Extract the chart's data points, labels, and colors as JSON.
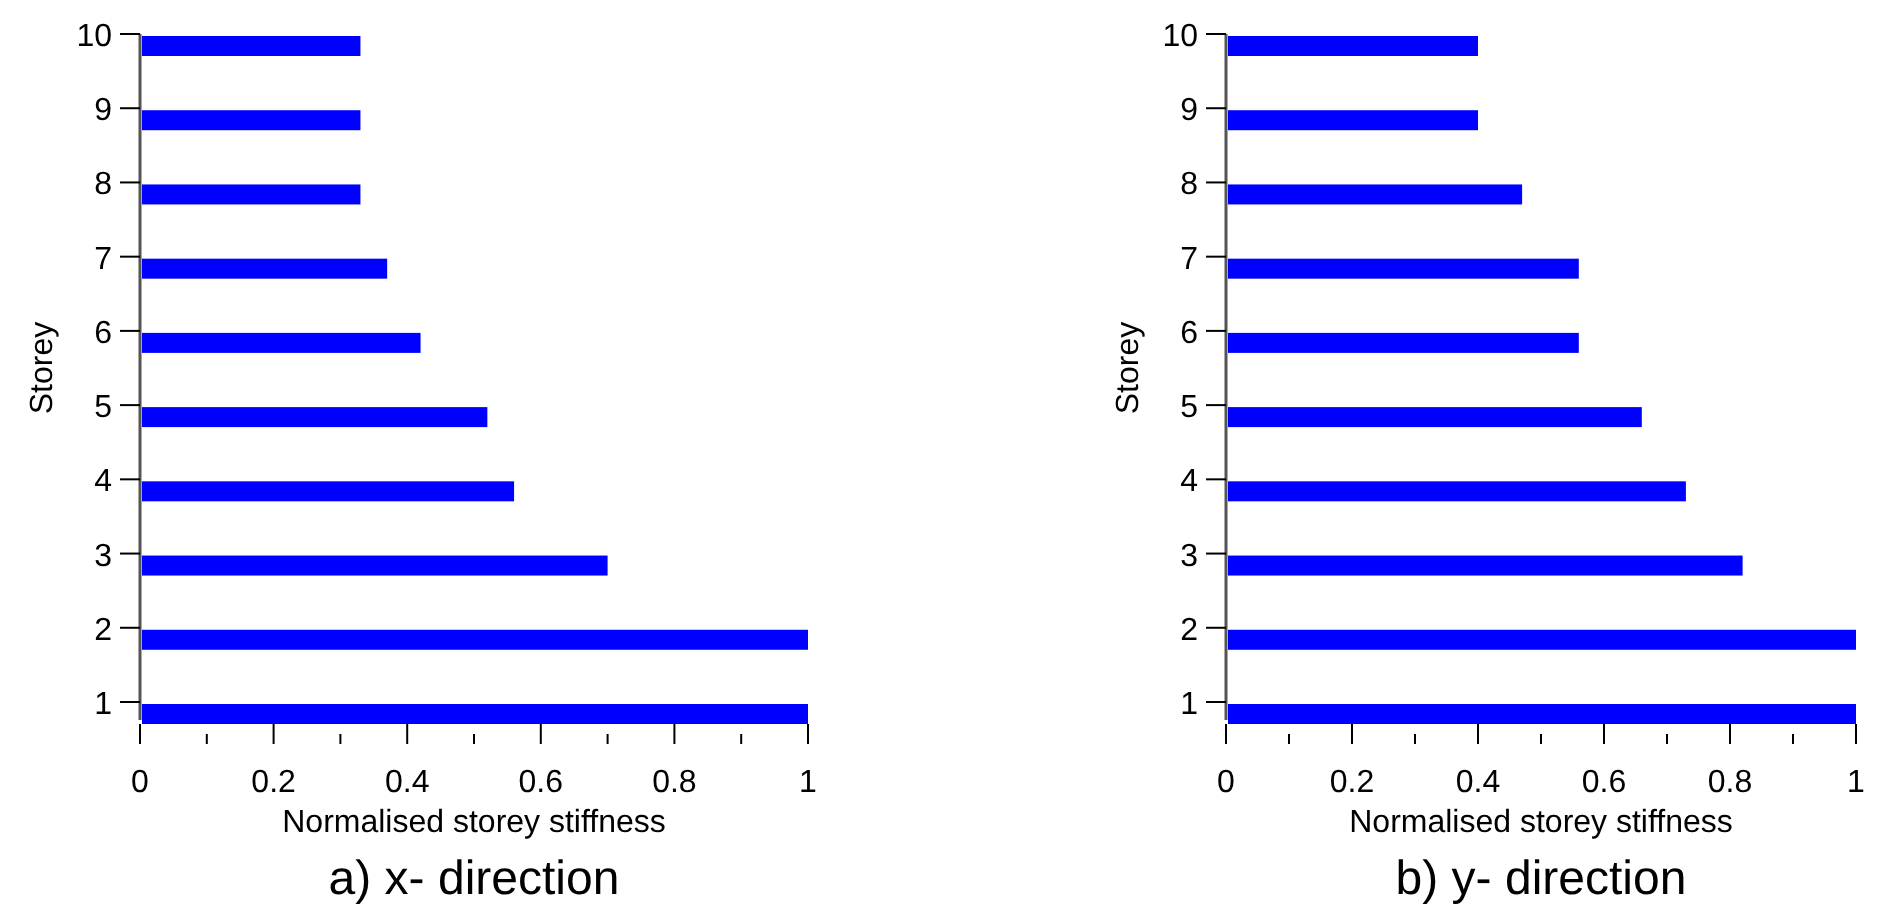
{
  "chart_data": [
    {
      "type": "bar",
      "orientation": "horizontal",
      "title": "a)   x- direction",
      "xlabel": "Normalised storey stiffness",
      "ylabel": "Storey",
      "categories": [
        "10",
        "9",
        "8",
        "7",
        "6",
        "5",
        "4",
        "3",
        "2",
        "1"
      ],
      "values": [
        0.33,
        0.33,
        0.33,
        0.37,
        0.42,
        0.52,
        0.56,
        0.7,
        1,
        1
      ],
      "color": "#0000ff",
      "xlim": [
        0,
        1
      ],
      "xticks": [
        0,
        {
          "value": 0.1,
          "label": null
        },
        0.2,
        {
          "value": 0.3,
          "label": null
        },
        0.4,
        {
          "value": 0.5,
          "label": null
        },
        0.6,
        {
          "value": 0.7,
          "label": null
        },
        0.8,
        {
          "value": 0.9,
          "label": null
        },
        1
      ],
      "grid": false
    },
    {
      "type": "bar",
      "orientation": "horizontal",
      "title": "b) y- direction",
      "xlabel": "Normalised storey stiffness",
      "ylabel": "Storey",
      "categories": [
        "10",
        "9",
        "8",
        "7",
        "6",
        "5",
        "4",
        "3",
        "2",
        "1"
      ],
      "values": [
        0.4,
        0.4,
        0.47,
        0.56,
        0.56,
        0.66,
        0.73,
        0.82,
        1,
        1
      ],
      "color": "#0000ff",
      "xlim": [
        0,
        1
      ],
      "xticks": [
        0,
        {
          "value": 0.1,
          "label": null
        },
        0.2,
        {
          "value": 0.3,
          "label": null
        },
        0.4,
        {
          "value": 0.5,
          "label": null
        },
        0.6,
        {
          "value": 0.7,
          "label": null
        },
        0.8,
        {
          "value": 0.9,
          "label": null
        },
        1
      ],
      "grid": false
    }
  ]
}
